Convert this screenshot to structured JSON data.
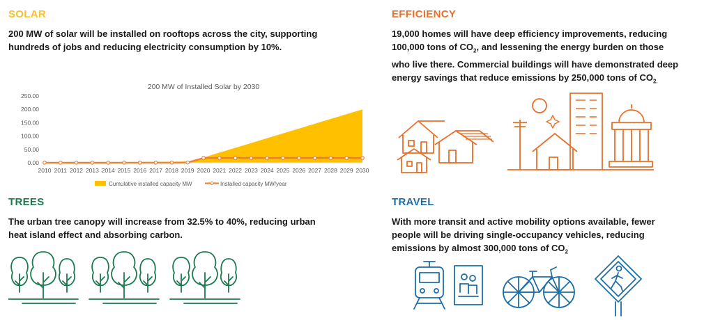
{
  "colors": {
    "solar": "#f6c12c",
    "efficiency": "#e8702a",
    "trees": "#1c7a4f",
    "travel": "#1e6fa8",
    "chart_area": "#ffc000",
    "chart_line": "#ed7d31"
  },
  "solar": {
    "heading": "SOLAR",
    "line1": "200 MW of solar will be installed on rooftops across the city, supporting",
    "line2": "hundreds of jobs and reducing electricity consumption by 10%."
  },
  "efficiency": {
    "heading": "EFFICIENCY",
    "line1": "19,000 homes will have deep efficiency improvements, reducing",
    "line2a": "100,000 tons of CO",
    "line2sub": "2",
    "line2b": ", and lessening the energy burden on those",
    "line3": "who live there. Commercial buildings will have demonstrated deep",
    "line4a": "energy savings that reduce emissions by 250,000 tons of CO",
    "line4sub": "2."
  },
  "trees": {
    "heading": "TREES",
    "line1": "The urban tree canopy will increase from 32.5% to 40%, reducing urban",
    "line2": "heat island effect and absorbing carbon."
  },
  "travel": {
    "heading": "TRAVEL",
    "line1": "With more transit and active mobility options available, fewer",
    "line2": "people will be driving single-occupancy vehicles, reducing",
    "line3a": "emissions by almost 300,000 tons of CO",
    "line3sub": "2"
  },
  "icons": {
    "efficiency": [
      "houses-icon",
      "solar-panel-icon",
      "city-buildings-icon"
    ],
    "trees": [
      "tree-group-icon"
    ],
    "travel": [
      "train-icon",
      "bus-stop-icon",
      "bicycle-icon",
      "pedestrian-sign-icon"
    ]
  },
  "chart_data": {
    "type": "area",
    "title": "200 MW of Installed Solar by 2030",
    "categories": [
      "2010",
      "2011",
      "2012",
      "2013",
      "2014",
      "2015",
      "2016",
      "2017",
      "2018",
      "2019",
      "2020",
      "2021",
      "2022",
      "2023",
      "2024",
      "2025",
      "2026",
      "2027",
      "2028",
      "2029",
      "2030"
    ],
    "series": [
      {
        "name": "Cumulative installed capacity MW",
        "kind": "area",
        "values": [
          0.5,
          0.8,
          1.2,
          1.6,
          2.0,
          2.5,
          3.0,
          3.5,
          4.0,
          5.0,
          20,
          38,
          56,
          74,
          92,
          110,
          128,
          146,
          164,
          182,
          200
        ]
      },
      {
        "name": "Installed capacity MW/year",
        "kind": "line",
        "values": [
          0.5,
          0.3,
          0.4,
          0.4,
          0.4,
          0.5,
          0.5,
          0.5,
          0.5,
          1.0,
          18,
          18,
          18,
          18,
          18,
          18,
          18,
          18,
          18,
          18,
          18
        ]
      }
    ],
    "yticks": [
      "0.00",
      "50.00",
      "100.00",
      "150.00",
      "200.00",
      "250.00"
    ],
    "ylim": [
      0,
      250
    ],
    "legend_position": "bottom",
    "grid": false
  }
}
